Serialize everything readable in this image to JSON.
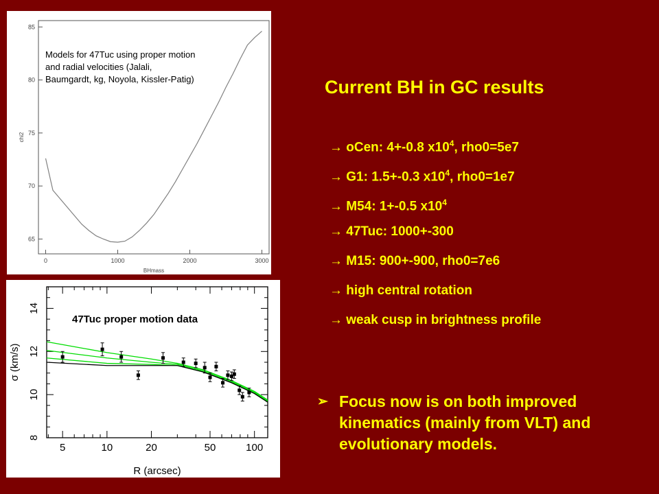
{
  "slide": {
    "title": "Current BH in GC results",
    "bullets": [
      {
        "arrow": "→",
        "pre": "oCen: 4+-0.8 x10",
        "sup": "4",
        "post": ", rho0=5e7"
      },
      {
        "arrow": "→",
        "pre": "G1: 1.5+-0.3 x10",
        "sup": "4",
        "post": ", rho0=1e7"
      },
      {
        "arrow": "→",
        "pre": "M54: 1+-0.5 x10",
        "sup": "4",
        "post": ""
      },
      {
        "arrow": "→",
        "pre": "47Tuc: 1000+-300",
        "sup": "",
        "post": ""
      },
      {
        "arrow": "→",
        "pre": "M15: 900+-900, rho0=7e6",
        "sup": "",
        "post": ""
      },
      {
        "arrow": "→",
        "pre": "high central rotation",
        "sup": "",
        "post": ""
      },
      {
        "arrow": "→",
        "pre": "weak cusp in brightness profile",
        "sup": "",
        "post": ""
      }
    ],
    "focus_bullet": "➢",
    "focus_text": "Focus now is on both improved kinematics (mainly from VLT) and evolutionary models.",
    "colors": {
      "background": "#7b0000",
      "text": "#ffff00"
    }
  },
  "chart_data": [
    {
      "type": "line",
      "annotation": "Models for 47Tuc using proper motion and radial velocities (Jalali, Baumgardt, kg, Noyola, Kissler-Patig)",
      "annotation_lines": [
        "Models for 47Tuc using proper motion",
        "and radial velocities (Jalali,",
        "Baumgardt, kg, Noyola, Kissler-Patig)"
      ],
      "xlabel": "BHmass",
      "ylabel": "chi2",
      "xlim": [
        -100,
        3100
      ],
      "ylim": [
        63.6,
        85.6
      ],
      "xticks": [
        0,
        1000,
        2000,
        3000
      ],
      "yticks": [
        65,
        70,
        75,
        80,
        85
      ],
      "series": [
        {
          "x": [
            0,
            100,
            200,
            300,
            400,
            500,
            600,
            700,
            800,
            900,
            1000,
            1100,
            1200,
            1300,
            1400,
            1500,
            1600,
            1700,
            1800,
            1900,
            2000,
            2100,
            2200,
            2300,
            2400,
            2500,
            2600,
            2700,
            2800,
            2900,
            3000
          ],
          "y": [
            72.6,
            69.6,
            68.8,
            68.0,
            67.2,
            66.4,
            65.8,
            65.3,
            65.0,
            64.75,
            64.7,
            64.8,
            65.2,
            65.8,
            66.5,
            67.3,
            68.3,
            69.3,
            70.4,
            71.6,
            72.8,
            74.0,
            75.3,
            76.6,
            77.9,
            79.3,
            80.6,
            82.0,
            83.3,
            84.0,
            84.6
          ],
          "color": "#808080"
        }
      ]
    },
    {
      "type": "scatter",
      "annotation": "47Tuc proper motion data",
      "xlabel": "R (arcsec)",
      "ylabel": "σ (km/s)",
      "xscale": "log",
      "xlim": [
        3.9,
        123
      ],
      "ylim": [
        8,
        15
      ],
      "xticks": [
        5,
        10,
        20,
        50,
        100
      ],
      "yticks": [
        8,
        10,
        12,
        14
      ],
      "points": {
        "x": [
          5,
          9.3,
          12.5,
          16.3,
          24,
          33,
          40,
          46,
          50,
          55,
          61,
          66,
          70,
          73,
          79,
          83,
          92
        ],
        "y": [
          11.75,
          12.1,
          11.75,
          10.9,
          11.7,
          11.5,
          11.45,
          11.25,
          10.8,
          11.3,
          10.55,
          10.9,
          10.85,
          10.95,
          10.2,
          9.9,
          10.1
        ],
        "err": [
          0.25,
          0.3,
          0.25,
          0.2,
          0.25,
          0.2,
          0.2,
          0.25,
          0.2,
          0.2,
          0.2,
          0.2,
          0.2,
          0.2,
          0.2,
          0.2,
          0.2
        ]
      },
      "series": [
        {
          "x": [
            3.9,
            10,
            20,
            30,
            45,
            70,
            100,
            123
          ],
          "y": [
            12.45,
            11.95,
            11.65,
            11.45,
            11.15,
            10.65,
            10.15,
            9.75
          ],
          "color": "#00dd00"
        },
        {
          "x": [
            3.9,
            10,
            20,
            30,
            45,
            70,
            100,
            123
          ],
          "y": [
            12.05,
            11.7,
            11.5,
            11.4,
            11.1,
            10.6,
            10.1,
            9.7
          ],
          "color": "#00dd00"
        },
        {
          "x": [
            3.9,
            10,
            20,
            30,
            45,
            70,
            100,
            123
          ],
          "y": [
            11.7,
            11.45,
            11.4,
            11.35,
            11.05,
            10.55,
            10.05,
            9.65
          ],
          "color": "#00dd00"
        },
        {
          "x": [
            3.9,
            10,
            20,
            30,
            45,
            70,
            100,
            123
          ],
          "y": [
            11.5,
            11.35,
            11.35,
            11.35,
            11.05,
            10.55,
            10.05,
            9.65
          ],
          "color": "#000000"
        }
      ]
    }
  ]
}
